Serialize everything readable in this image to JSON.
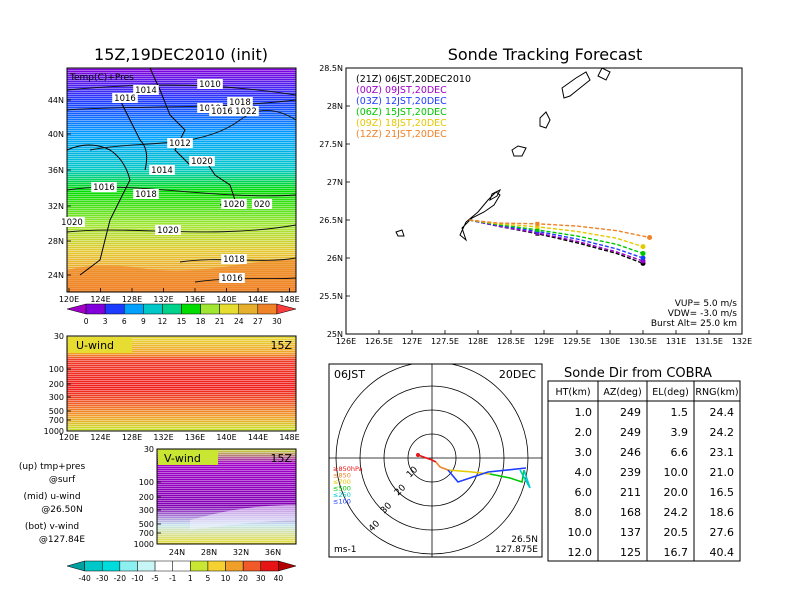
{
  "left_title": "15Z,19DEC2010 (init)",
  "map_overlay_label": "Temp(C)+Pres",
  "map_lat_ticks": [
    "44N",
    "40N",
    "36N",
    "32N",
    "28N",
    "24N"
  ],
  "map_lon_ticks": [
    "120E",
    "124E",
    "128E",
    "132E",
    "136E",
    "140E",
    "144E",
    "148E"
  ],
  "temp_colorbar": {
    "labels": [
      "0",
      "3",
      "6",
      "9",
      "12",
      "15",
      "18",
      "21",
      "24",
      "27",
      "30"
    ],
    "colors": [
      "#a000c8",
      "#8200dc",
      "#1e3cff",
      "#00a0ff",
      "#00c8c8",
      "#00d28c",
      "#00dc00",
      "#a0e632",
      "#e6dc32",
      "#e6af2d",
      "#f08228",
      "#fa3c3c"
    ]
  },
  "isobar_labels": [
    "1010",
    "1014",
    "1016",
    "1010",
    "1018",
    "1016",
    "1022",
    "1012",
    "1020",
    "1014",
    "1016",
    "1018",
    "1020",
    "1020",
    "020",
    "1020",
    "1018",
    "1016"
  ],
  "uwind": {
    "title": "U-wind",
    "time": "15Z",
    "y_ticks": [
      "30",
      "100",
      "200",
      "300",
      "500",
      "700",
      "1000"
    ],
    "x_ticks": [
      "120E",
      "124E",
      "128E",
      "132E",
      "136E",
      "140E",
      "144E",
      "148E"
    ]
  },
  "vwind": {
    "title": "V-wind",
    "time": "15Z",
    "y_ticks": [
      "30",
      "100",
      "200",
      "300",
      "500",
      "700",
      "1000"
    ],
    "x_ticks": [
      "24N",
      "28N",
      "32N",
      "36N"
    ]
  },
  "legend_text": [
    {
      "line1": "(up) tmp+pres",
      "line2": "@surf"
    },
    {
      "line1": "(mid) u-wind",
      "line2": "@26.50N"
    },
    {
      "line1": "(bot) v-wind",
      "line2": "@127.84E"
    }
  ],
  "wind_colorbar": {
    "labels": [
      "-40",
      "-30",
      "-20",
      "-10",
      "-5",
      "-1",
      "1",
      "5",
      "10",
      "20",
      "30",
      "40"
    ],
    "colors": [
      "#00a0a0",
      "#00c8c8",
      "#00dcdc",
      "#8cf0f0",
      "#c8f5f5",
      "#ffffff",
      "#ffffff",
      "#c8e632",
      "#f5d232",
      "#f0a028",
      "#f05a28",
      "#e61414",
      "#b40000"
    ]
  },
  "tracking": {
    "title": "Sonde Tracking Forecast",
    "legend": [
      {
        "label": "(21Z)  06JST,20DEC2010",
        "color": "#000000"
      },
      {
        "label": "(00Z)  09JST,20DEC",
        "color": "#a000c8"
      },
      {
        "label": "(03Z)  12JST,20DEC",
        "color": "#1e3cff"
      },
      {
        "label": "(06Z)  15JST,20DEC",
        "color": "#00c800"
      },
      {
        "label": "(09Z)  18JST,20DEC",
        "color": "#e6c800"
      },
      {
        "label": "(12Z)  21JST,20DEC",
        "color": "#f08228"
      }
    ],
    "params": [
      "VUP=  5.0  m/s",
      "VDW= -3.0  m/s",
      "Burst Alt=  25.0  km"
    ],
    "lat_ticks": [
      "28.5N",
      "28N",
      "27.5N",
      "27N",
      "26.5N",
      "26N",
      "25.5N",
      "25N"
    ],
    "lon_ticks": [
      "126E",
      "126.5E",
      "127E",
      "127.5E",
      "128E",
      "128.5E",
      "129E",
      "129.5E",
      "130E",
      "130.5E",
      "131E",
      "131.5E",
      "132E"
    ]
  },
  "chart_data": {
    "type": "line",
    "title": "Sonde Tracking Forecast",
    "xlim": [
      126,
      132
    ],
    "ylim": [
      25,
      28.5
    ],
    "series": [
      {
        "name": "(21Z)  06JST,20DEC2010",
        "x": [
          127.87,
          128.3,
          128.9,
          129.5,
          130.1,
          130.5
        ],
        "y": [
          26.5,
          26.42,
          26.32,
          26.2,
          26.06,
          25.93
        ]
      },
      {
        "name": "(00Z)  09JST,20DEC",
        "x": [
          127.87,
          128.3,
          128.9,
          129.5,
          130.1,
          130.5
        ],
        "y": [
          26.5,
          26.42,
          26.33,
          26.22,
          26.08,
          25.96
        ]
      },
      {
        "name": "(03Z)  12JST,20DEC",
        "x": [
          127.87,
          128.3,
          128.9,
          129.5,
          130.1,
          130.5
        ],
        "y": [
          26.5,
          26.43,
          26.35,
          26.25,
          26.12,
          26.0
        ]
      },
      {
        "name": "(06Z)  15JST,20DEC",
        "x": [
          127.87,
          128.3,
          128.9,
          129.5,
          130.1,
          130.5
        ],
        "y": [
          26.5,
          26.44,
          26.37,
          26.29,
          26.18,
          26.06
        ]
      },
      {
        "name": "(09Z)  18JST,20DEC",
        "x": [
          127.87,
          128.3,
          128.9,
          129.5,
          130.1,
          130.5
        ],
        "y": [
          26.5,
          26.45,
          26.41,
          26.35,
          26.26,
          26.15
        ]
      },
      {
        "name": "(12Z)  21JST,20DEC",
        "x": [
          127.87,
          128.3,
          128.9,
          129.5,
          130.1,
          130.6
        ],
        "y": [
          26.5,
          26.46,
          26.45,
          26.42,
          26.36,
          26.27
        ]
      }
    ]
  },
  "polar": {
    "left_label": "06JST",
    "right_label": "20DEC",
    "ring_labels": [
      "10",
      "20",
      "30",
      "40"
    ],
    "level_labels": [
      {
        "text": "≥850hPa",
        "color": "#e61414"
      },
      {
        "text": "≤850",
        "color": "#f08228"
      },
      {
        "text": "≤700",
        "color": "#e6c800"
      },
      {
        "text": "≤500",
        "color": "#00c800"
      },
      {
        "text": "≤250",
        "color": "#00c8c8"
      },
      {
        "text": "≤100",
        "color": "#1e3cff"
      }
    ],
    "unit": "ms-1",
    "pos_lat": "26.5N",
    "pos_lon": "127.875E"
  },
  "sonde_table": {
    "title": "Sonde Dir from COBRA",
    "headers": [
      "HT(km)",
      "AZ(deg)",
      "EL(deg)",
      "RNG(km)"
    ],
    "rows": [
      [
        "1.0",
        "249",
        "1.5",
        "24.4"
      ],
      [
        "2.0",
        "249",
        "3.9",
        "24.2"
      ],
      [
        "3.0",
        "246",
        "6.6",
        "23.1"
      ],
      [
        "4.0",
        "239",
        "10.0",
        "21.0"
      ],
      [
        "6.0",
        "211",
        "20.0",
        "16.5"
      ],
      [
        "8.0",
        "168",
        "24.2",
        "18.6"
      ],
      [
        "10.0",
        "137",
        "20.5",
        "27.6"
      ],
      [
        "12.0",
        "125",
        "16.7",
        "40.4"
      ]
    ]
  }
}
